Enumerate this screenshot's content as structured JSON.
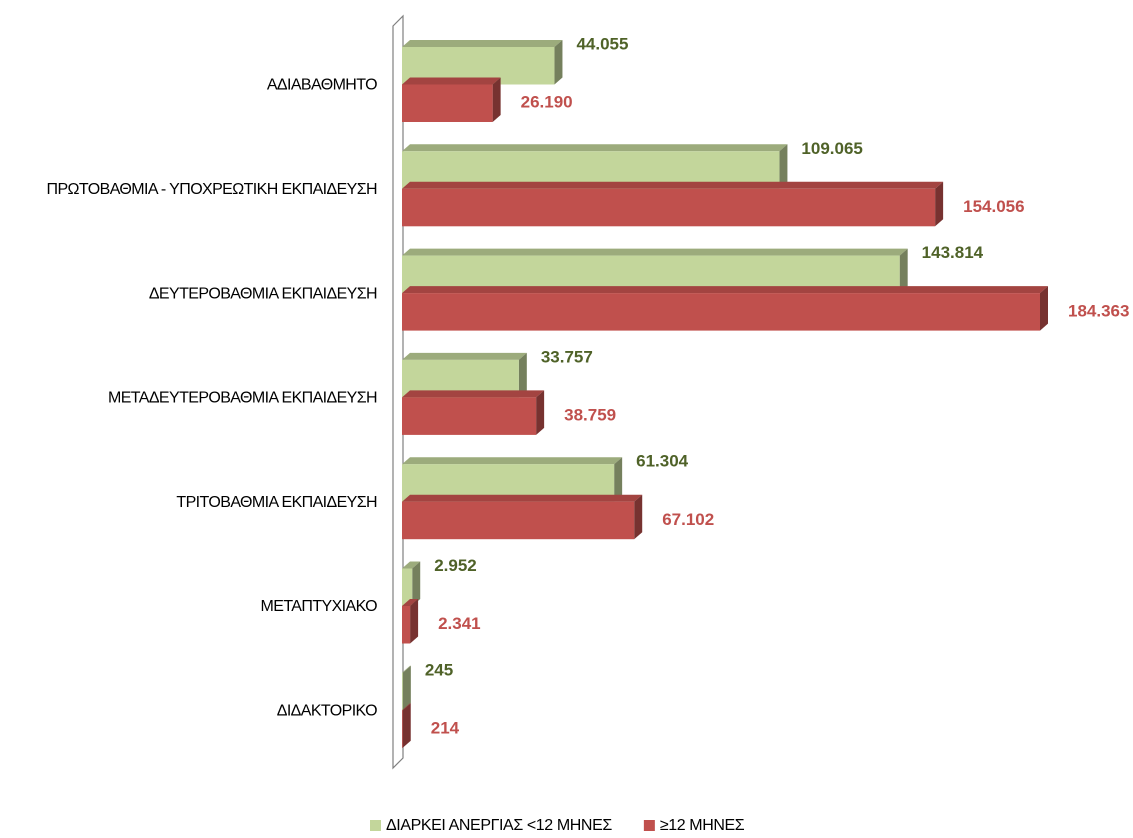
{
  "chart_data": {
    "type": "bar",
    "orientation": "horizontal",
    "categories": [
      "ΑΔΙΑΒΑΘΜΗΤΟ",
      "ΠΡΩΤΟΒΑΘΜΙΑ - ΥΠΟΧΡΕΩΤΙΚΗ ΕΚΠΑΙΔΕΥΣΗ",
      "ΔΕΥΤΕΡΟΒΑΘΜΙΑ ΕΚΠΑΙΔΕΥΣΗ",
      "ΜΕΤΑΔΕΥΤΕΡΟΒΑΘΜΙΑ ΕΚΠΑΙΔΕΥΣΗ",
      "ΤΡΙΤΟΒΑΘΜΙΑ ΕΚΠΑΙΔΕΥΣΗ",
      "ΜΕΤΑΠΤΥΧΙΑΚΟ",
      "ΔΙΔΑΚΤΟΡΙΚΟ"
    ],
    "series": [
      {
        "name": "ΔΙΑΡΚΕΙ ΑΝΕΡΓΙΑΣ <12 ΜΗΝΕΣ",
        "color": "#c3d69b",
        "values": [
          44055,
          109065,
          143814,
          33757,
          61304,
          2952,
          245
        ],
        "value_labels": [
          "44.055",
          "109.065",
          "143.814",
          "33.757",
          "61.304",
          "2.952",
          "245"
        ]
      },
      {
        "name": "≥12 ΜΗΝΕΣ",
        "color": "#c0504d",
        "values": [
          26190,
          154056,
          184363,
          38759,
          67102,
          2341,
          214
        ],
        "value_labels": [
          "26.190",
          "154.056",
          "184.363",
          "38.759",
          "67.102",
          "2.341",
          "214"
        ]
      }
    ],
    "legend": "bottom"
  }
}
